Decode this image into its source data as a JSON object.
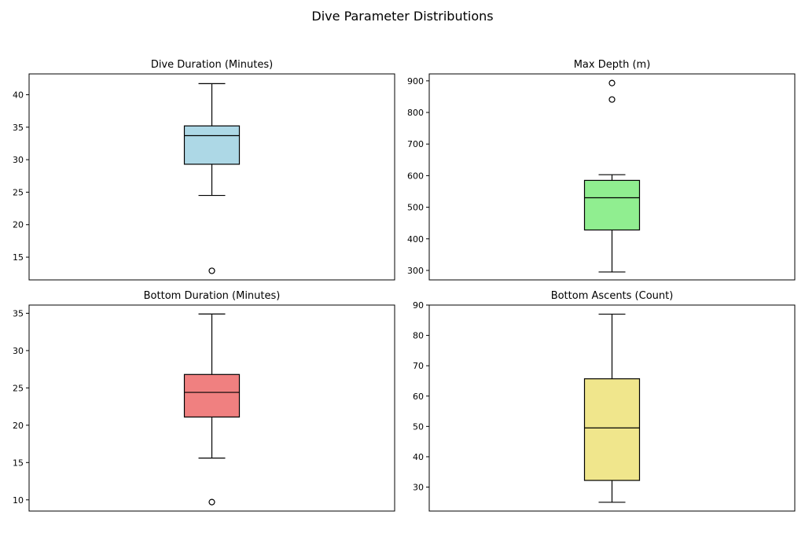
{
  "figure": {
    "title": "Dive Parameter Distributions"
  },
  "chart_data": [
    {
      "type": "box",
      "title": "Dive Duration (Minutes)",
      "xlabel": "",
      "ylabel": "",
      "color": "#add8e6",
      "ylim": [
        11.5,
        43.2
      ],
      "yticks": [
        15,
        20,
        25,
        30,
        35,
        40
      ],
      "box": {
        "whisker_low": 24.5,
        "q1": 29.3,
        "median": 33.7,
        "q3": 35.2,
        "whisker_high": 41.7,
        "outliers": [
          12.9
        ]
      }
    },
    {
      "type": "box",
      "title": "Max Depth (m)",
      "xlabel": "",
      "ylabel": "",
      "color": "#90ee90",
      "ylim": [
        270,
        922
      ],
      "yticks": [
        300,
        400,
        500,
        600,
        700,
        800,
        900
      ],
      "box": {
        "whisker_low": 295,
        "q1": 428,
        "median": 530,
        "q3": 585,
        "whisker_high": 603,
        "outliers": [
          841,
          893
        ]
      }
    },
    {
      "type": "box",
      "title": "Bottom Duration (Minutes)",
      "xlabel": "",
      "ylabel": "",
      "color": "#f08080",
      "ylim": [
        8.5,
        36.1
      ],
      "yticks": [
        10,
        15,
        20,
        25,
        30,
        35
      ],
      "box": {
        "whisker_low": 15.6,
        "q1": 21.1,
        "median": 24.4,
        "q3": 26.8,
        "whisker_high": 34.9,
        "outliers": [
          9.7
        ]
      }
    },
    {
      "type": "box",
      "title": "Bottom Ascents (Count)",
      "xlabel": "",
      "ylabel": "",
      "color": "#f0e68c",
      "ylim": [
        22.1,
        90
      ],
      "yticks": [
        30,
        40,
        50,
        60,
        70,
        80,
        90
      ],
      "box": {
        "whisker_low": 25,
        "q1": 32.2,
        "median": 49.5,
        "q3": 65.7,
        "whisker_high": 87,
        "outliers": []
      }
    }
  ]
}
